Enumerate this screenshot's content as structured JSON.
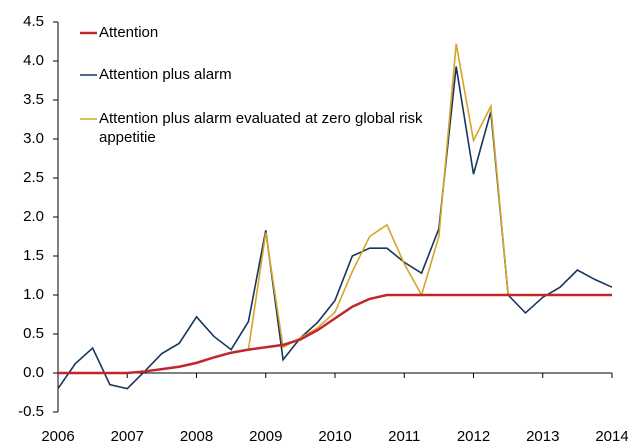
{
  "chart_data": {
    "type": "line",
    "x": [
      2006,
      2006.25,
      2006.5,
      2006.75,
      2007,
      2007.25,
      2007.5,
      2007.75,
      2008,
      2008.25,
      2008.5,
      2008.75,
      2009,
      2009.25,
      2009.5,
      2009.75,
      2010,
      2010.25,
      2010.5,
      2010.75,
      2011,
      2011.25,
      2011.5,
      2011.75,
      2012,
      2012.25,
      2012.5,
      2012.75,
      2013,
      2013.25,
      2013.5,
      2013.75,
      2014
    ],
    "series": [
      {
        "name": "Attention",
        "color": "#c0272d",
        "values": [
          0,
          0,
          0,
          0,
          0,
          0.02,
          0.05,
          0.08,
          0.13,
          0.2,
          0.26,
          0.3,
          0.33,
          0.36,
          0.43,
          0.55,
          0.7,
          0.85,
          0.95,
          1,
          1,
          1,
          1,
          1,
          1,
          1,
          1,
          1,
          1,
          1,
          1,
          1,
          1
        ]
      },
      {
        "name": "Attention plus alarm",
        "color": "#17365d",
        "values": [
          -0.2,
          0.12,
          0.32,
          -0.15,
          -0.2,
          0.02,
          0.25,
          0.38,
          0.72,
          0.47,
          0.3,
          0.66,
          1.83,
          0.17,
          0.45,
          0.65,
          0.93,
          1.5,
          1.6,
          1.6,
          1.42,
          1.28,
          1.85,
          3.93,
          2.55,
          3.35,
          1,
          0.77,
          0.97,
          1.1,
          1.32,
          1.2,
          1.1
        ]
      },
      {
        "name": "Attention plus alarm evaluated at zero global risk appetitie",
        "color": "#d4a52a",
        "values": [
          0,
          0,
          0,
          0,
          0,
          0.02,
          0.05,
          0.08,
          0.13,
          0.2,
          0.26,
          0.3,
          1.8,
          0.33,
          0.45,
          0.58,
          0.78,
          1.3,
          1.75,
          1.9,
          1.4,
          1,
          1.75,
          4.22,
          2.98,
          3.42,
          1,
          1,
          1,
          1,
          1,
          1,
          1
        ]
      }
    ],
    "xlim": [
      2006,
      2014
    ],
    "xticks": [
      2006,
      2007,
      2008,
      2009,
      2010,
      2011,
      2012,
      2013,
      2014
    ],
    "ylim": [
      -0.5,
      4.5
    ],
    "yticks": [
      {
        "value": -0.5,
        "label": "-0.5"
      },
      {
        "value": 0,
        "label": "0.0"
      },
      {
        "value": 0.5,
        "label": "0.5"
      },
      {
        "value": 1,
        "label": "1.0"
      },
      {
        "value": 1.5,
        "label": "1.5"
      },
      {
        "value": 2,
        "label": "2.0"
      },
      {
        "value": 2.5,
        "label": "2.5"
      },
      {
        "value": 3,
        "label": "3.0"
      },
      {
        "value": 3.5,
        "label": "3.5"
      },
      {
        "value": 4,
        "label": "4.0"
      },
      {
        "value": 4.5,
        "label": "4.5"
      }
    ],
    "legend": "top-left"
  }
}
